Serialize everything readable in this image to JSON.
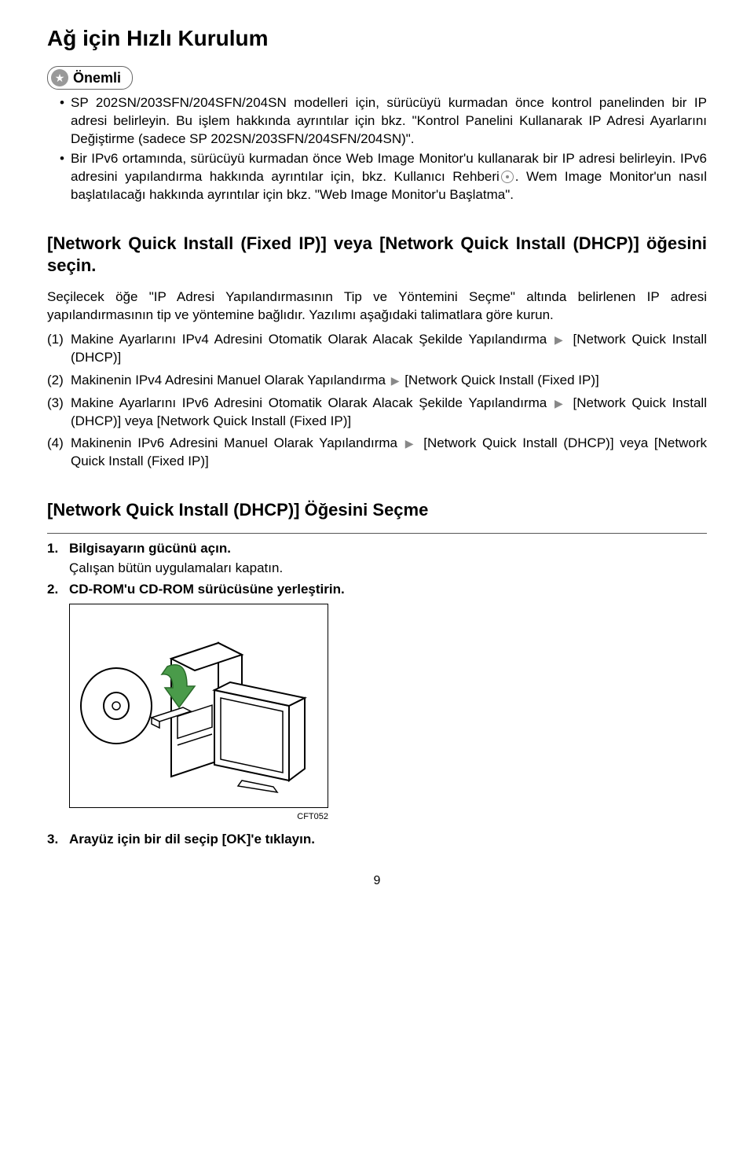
{
  "title": "Ağ için Hızlı Kurulum",
  "important_label": "Önemli",
  "bullets": [
    "SP 202SN/203SFN/204SFN/204SN modelleri için, sürücüyü kurmadan önce kontrol panelinden bir IP adresi belirleyin. Bu işlem hakkında ayrıntılar için bkz. \"Kontrol Panelini Kullanarak IP Adresi Ayarlarını Değiştirme (sadece SP 202SN/203SFN/204SFN/204SN)\".",
    "Bir IPv6 ortamında, sürücüyü kurmadan önce Web Image Monitor'u kullanarak bir IP adresi belirleyin. IPv6 adresini yapılandırma hakkında ayrıntılar için, bkz. Kullanıcı Rehberi",
    ". Wem Image Monitor'un nasıl başlatılacağı hakkında ayrıntılar için bkz. \"Web Image Monitor'u Başlatma\"."
  ],
  "section1_heading": "[Network Quick Install (Fixed IP)] veya [Network Quick Install (DHCP)] öğesini seçin.",
  "section1_para": "Seçilecek öğe \"IP Adresi Yapılandırmasının Tip ve Yöntemini Seçme\" altında belirlenen IP adresi yapılandırmasının tip ve yöntemine bağlıdır. Yazılımı aşağıdaki talimatlara göre kurun.",
  "options": [
    {
      "num": "(1)",
      "pre": "Makine Ayarlarını IPv4 Adresini Otomatik Olarak Alacak Şekilde Yapılandırma",
      "post": "[Network Quick Install (DHCP)]"
    },
    {
      "num": "(2)",
      "pre": "Makinenin IPv4 Adresini Manuel Olarak Yapılandırma",
      "post": "[Network Quick Install (Fixed IP)]"
    },
    {
      "num": "(3)",
      "pre": "Makine Ayarlarını IPv6 Adresini Otomatik Olarak Alacak Şekilde Yapılandırma",
      "post": "[Network Quick Install (DHCP)] veya [Network Quick Install (Fixed IP)]"
    },
    {
      "num": "(4)",
      "pre": "Makinenin IPv6 Adresini Manuel Olarak Yapılandırma",
      "post": "[Network Quick Install (DHCP)] veya [Network Quick Install (Fixed IP)]"
    }
  ],
  "section2_heading": "[Network Quick Install (DHCP)] Öğesini Seçme",
  "steps": [
    {
      "num": "1.",
      "text": "Bilgisayarın gücünü açın.",
      "sub": "Çalışan bütün uygulamaları kapatın."
    },
    {
      "num": "2.",
      "text": "CD-ROM'u CD-ROM sürücüsüne yerleştirin."
    }
  ],
  "figure_caption": "CFT052",
  "step3": {
    "num": "3.",
    "text": "Arayüz için bir dil seçip [OK]'e tıklayın."
  },
  "page_number": "9",
  "colors": {
    "text": "#000000",
    "bg": "#ffffff",
    "arrow": "#888888",
    "badge_border": "#666666",
    "star_bg": "#999999"
  }
}
